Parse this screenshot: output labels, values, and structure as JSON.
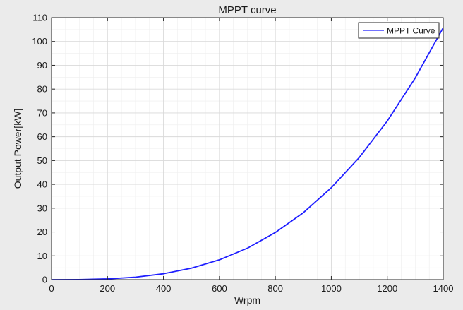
{
  "chart_data": {
    "type": "line",
    "title": "MPPT curve",
    "xlabel": "Wrpm",
    "ylabel": "Output Power[kW]",
    "xlim": [
      0,
      1400
    ],
    "ylim": [
      0,
      110
    ],
    "x_ticks": [
      0,
      200,
      400,
      600,
      800,
      1000,
      1200,
      1400
    ],
    "y_ticks": [
      0,
      10,
      20,
      30,
      40,
      50,
      60,
      70,
      80,
      90,
      100,
      110
    ],
    "grid": true,
    "minor_grid": true,
    "legend_position": "top-right",
    "series": [
      {
        "name": "MPPT Curve",
        "color": "#1f1fff",
        "x": [
          0,
          100,
          200,
          300,
          400,
          500,
          600,
          700,
          800,
          900,
          1000,
          1100,
          1200,
          1300,
          1400
        ],
        "y": [
          0,
          0.04,
          0.31,
          1.04,
          2.47,
          4.82,
          8.33,
          13.2,
          19.8,
          28.1,
          38.6,
          51.3,
          66.6,
          84.7,
          105.8
        ]
      }
    ]
  },
  "colors": {
    "figure_background": "#ebebeb",
    "axes_background": "#ffffff",
    "grid_major": "#d9d9d9",
    "grid_minor": "#eeeeee"
  }
}
